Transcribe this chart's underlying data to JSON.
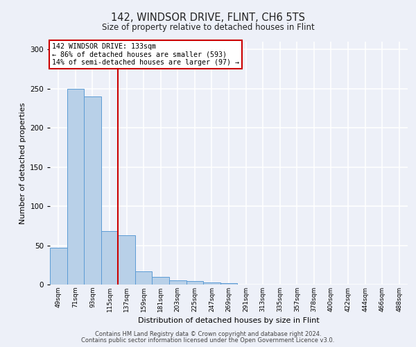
{
  "title1": "142, WINDSOR DRIVE, FLINT, CH6 5TS",
  "title2": "Size of property relative to detached houses in Flint",
  "xlabel": "Distribution of detached houses by size in Flint",
  "ylabel": "Number of detached properties",
  "categories": [
    "49sqm",
    "71sqm",
    "93sqm",
    "115sqm",
    "137sqm",
    "159sqm",
    "181sqm",
    "203sqm",
    "225sqm",
    "247sqm",
    "269sqm",
    "291sqm",
    "313sqm",
    "335sqm",
    "357sqm",
    "378sqm",
    "400sqm",
    "422sqm",
    "444sqm",
    "466sqm",
    "488sqm"
  ],
  "values": [
    47,
    250,
    240,
    68,
    63,
    17,
    10,
    5,
    4,
    3,
    2,
    0,
    0,
    0,
    0,
    0,
    0,
    0,
    0,
    0,
    0
  ],
  "bar_color": "#b8d0e8",
  "bar_edge_color": "#5b9bd5",
  "annotation_box_color": "#ffffff",
  "annotation_border_color": "#cc0000",
  "red_line_color": "#cc0000",
  "annotation_text_line1": "142 WINDSOR DRIVE: 133sqm",
  "annotation_text_line2": "← 86% of detached houses are smaller (593)",
  "annotation_text_line3": "14% of semi-detached houses are larger (97) →",
  "ylim": [
    0,
    310
  ],
  "yticks": [
    0,
    50,
    100,
    150,
    200,
    250,
    300
  ],
  "footnote1": "Contains HM Land Registry data © Crown copyright and database right 2024.",
  "footnote2": "Contains public sector information licensed under the Open Government Licence v3.0.",
  "background_color": "#edf0f8",
  "grid_color": "#ffffff"
}
